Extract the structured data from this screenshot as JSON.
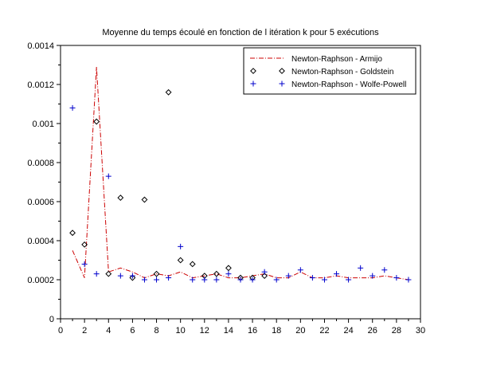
{
  "chart_data": {
    "type": "line",
    "title": "Moyenne du temps écoulé en fonction de l itération k pour 5 exécutions",
    "xlabel": "",
    "ylabel": "",
    "xlim": [
      0,
      30
    ],
    "ylim": [
      0,
      0.0014
    ],
    "x_ticks": [
      "0",
      "2",
      "4",
      "6",
      "8",
      "10",
      "12",
      "14",
      "16",
      "18",
      "20",
      "22",
      "24",
      "26",
      "28",
      "30"
    ],
    "y_ticks": [
      "0",
      "0.0002",
      "0.0004",
      "0.0006",
      "0.0008",
      "0.001",
      "0.0012",
      "0.0014"
    ],
    "grid": false,
    "legend_position": "top-right",
    "series": [
      {
        "name": "Newton-Raphson - Armijo",
        "marker": "line-dashdot",
        "color": "#cc0000",
        "x": [
          1,
          2,
          3,
          4,
          5,
          6,
          7,
          8,
          9,
          10,
          11,
          12,
          13,
          14,
          15,
          16,
          17,
          18,
          19,
          20,
          21,
          22,
          23,
          24,
          25,
          26,
          27,
          28,
          29
        ],
        "y": [
          0.00035,
          0.00021,
          0.00129,
          0.00024,
          0.00026,
          0.00024,
          0.00021,
          0.00023,
          0.00022,
          0.00024,
          0.00021,
          0.00022,
          0.00023,
          0.00021,
          0.00021,
          0.00022,
          0.00023,
          0.00021,
          0.00021,
          0.00024,
          0.00021,
          0.00021,
          0.00022,
          0.00021,
          0.00021,
          0.00021,
          0.00022,
          0.00021,
          0.0002
        ]
      },
      {
        "name": "Newton-Raphson - Goldstein",
        "marker": "diamond",
        "color": "#000000",
        "x": [
          1,
          2,
          3,
          4,
          5,
          6,
          7,
          8,
          9,
          10,
          11,
          12,
          13,
          14,
          15,
          16,
          17
        ],
        "y": [
          0.00044,
          0.00038,
          0.00101,
          0.00023,
          0.00062,
          0.00021,
          0.00061,
          0.00023,
          0.00116,
          0.0003,
          0.00028,
          0.00022,
          0.00023,
          0.00026,
          0.00021,
          0.00021,
          0.00022
        ]
      },
      {
        "name": "Newton-Raphson - Wolfe-Powell",
        "marker": "plus",
        "color": "#0000cc",
        "x": [
          1,
          2,
          3,
          4,
          5,
          6,
          7,
          8,
          9,
          10,
          11,
          12,
          13,
          14,
          15,
          16,
          17,
          18,
          19,
          20,
          21,
          22,
          23,
          24,
          25,
          26,
          27,
          28,
          29
        ],
        "y": [
          0.00108,
          0.00028,
          0.00023,
          0.00073,
          0.00022,
          0.00022,
          0.0002,
          0.0002,
          0.00021,
          0.00037,
          0.0002,
          0.0002,
          0.0002,
          0.00023,
          0.0002,
          0.0002,
          0.00024,
          0.0002,
          0.00022,
          0.00025,
          0.00021,
          0.0002,
          0.00023,
          0.0002,
          0.00026,
          0.00022,
          0.00025,
          0.00021,
          0.0002
        ]
      }
    ]
  }
}
